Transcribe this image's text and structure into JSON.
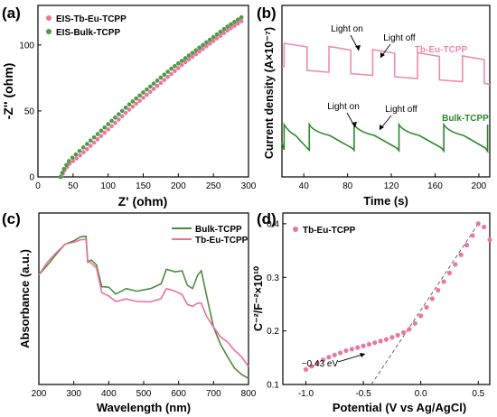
{
  "chart_data": [
    {
      "panel": "(a)",
      "type": "scatter",
      "xlabel": "Z' (ohm)",
      "ylabel": "-Z'' (ohm)",
      "xlim": [
        0,
        300
      ],
      "ylim": [
        0,
        130
      ],
      "xticks": [
        0,
        50,
        100,
        150,
        200,
        250,
        300
      ],
      "yticks": [
        0,
        50,
        100
      ],
      "legend_position": "top-left",
      "colors": [
        "#e8799c",
        "#4e9a48"
      ],
      "series": [
        {
          "name": "EIS-Tb-Eu-TCPP",
          "x": [
            33,
            38,
            45,
            55,
            70,
            90,
            110,
            130,
            150,
            170,
            190,
            210,
            230,
            250,
            270,
            290
          ],
          "y": [
            0,
            5,
            10,
            14,
            21,
            31,
            41,
            51,
            60,
            69,
            78,
            87,
            95,
            103,
            111,
            118
          ]
        },
        {
          "name": "EIS-Bulk-TCPP",
          "x": [
            32,
            37,
            44,
            54,
            70,
            90,
            110,
            130,
            150,
            170,
            190,
            210,
            230,
            250,
            270,
            290
          ],
          "y": [
            0,
            6,
            12,
            17,
            25,
            35,
            45,
            55,
            64,
            73,
            82,
            90,
            98,
            106,
            114,
            121
          ]
        }
      ]
    },
    {
      "panel": "(b)",
      "type": "line",
      "xlabel": "Time (s)",
      "ylabel": "Current density (A×10⁻⁷)",
      "xlim": [
        20,
        210
      ],
      "xticks": [
        40,
        80,
        120,
        160,
        200
      ],
      "colors": [
        "#f08aa8",
        "#2a8a2a"
      ],
      "series": [
        {
          "name": "Tb-Eu-TCPP",
          "on_times": [
            22,
            63,
            103,
            144,
            185
          ],
          "off_times": [
            43,
            83,
            123,
            164,
            205
          ]
        },
        {
          "name": "Bulk-TCPP",
          "on_times": [
            22,
            45,
            86,
            127,
            168,
            208
          ],
          "off_times": [
            105,
            146,
            187
          ]
        }
      ],
      "annotations": [
        "Light on",
        "Light off",
        "Light on",
        "Light off"
      ]
    },
    {
      "panel": "(c)",
      "type": "line",
      "xlabel": "Wavelength (nm)",
      "ylabel": "Absorbance (a.u.)",
      "xlim": [
        200,
        800
      ],
      "xticks": [
        200,
        300,
        400,
        500,
        600,
        700,
        800
      ],
      "legend_position": "top-right",
      "colors": [
        "#4e8a3e",
        "#ee6f9a"
      ],
      "series": [
        {
          "name": "Bulk-TCPP",
          "x": [
            200,
            225,
            250,
            275,
            300,
            320,
            335,
            340,
            350,
            365,
            380,
            400,
            420,
            450,
            480,
            520,
            550,
            565,
            590,
            610,
            625,
            640,
            655,
            665,
            680,
            700,
            720,
            740,
            760,
            780,
            800
          ],
          "y": [
            0.72,
            0.78,
            0.86,
            0.92,
            0.95,
            0.97,
            0.98,
            0.8,
            0.82,
            0.78,
            0.64,
            0.63,
            0.59,
            0.62,
            0.61,
            0.62,
            0.66,
            0.75,
            0.74,
            0.74,
            0.65,
            0.62,
            0.72,
            0.74,
            0.58,
            0.36,
            0.25,
            0.16,
            0.09,
            0.04,
            0.02
          ]
        },
        {
          "name": "Tb-Eu-TCPP",
          "x": [
            200,
            225,
            250,
            275,
            300,
            320,
            335,
            340,
            350,
            365,
            380,
            400,
            420,
            450,
            480,
            520,
            550,
            565,
            590,
            610,
            625,
            640,
            655,
            665,
            680,
            700,
            720,
            740,
            760,
            780,
            800
          ],
          "y": [
            0.72,
            0.8,
            0.87,
            0.92,
            0.94,
            0.95,
            0.96,
            0.8,
            0.8,
            0.76,
            0.6,
            0.57,
            0.54,
            0.55,
            0.54,
            0.53,
            0.56,
            0.62,
            0.61,
            0.58,
            0.52,
            0.5,
            0.53,
            0.52,
            0.44,
            0.36,
            0.3,
            0.26,
            0.21,
            0.16,
            0.1
          ]
        }
      ]
    },
    {
      "panel": "(d)",
      "type": "scatter",
      "xlabel": "Potential (V vs Ag/AgCl)",
      "ylabel": "C⁻²/F⁻²×10¹⁰",
      "xlim": [
        -1.2,
        0.6
      ],
      "ylim": [
        0.1,
        0.42
      ],
      "xticks": [
        -1.0,
        -0.5,
        0.0,
        0.5
      ],
      "yticks": [
        0.1,
        0.2,
        0.3,
        0.4
      ],
      "legend_position": "top-left",
      "colors": [
        "#e8799c"
      ],
      "series": [
        {
          "name": "Tb-Eu-TCPP",
          "x": [
            -1.0,
            -0.95,
            -0.9,
            -0.85,
            -0.8,
            -0.75,
            -0.7,
            -0.65,
            -0.6,
            -0.55,
            -0.5,
            -0.45,
            -0.4,
            -0.35,
            -0.3,
            -0.25,
            -0.2,
            -0.15,
            -0.1,
            -0.05,
            0.0,
            0.05,
            0.1,
            0.15,
            0.2,
            0.25,
            0.3,
            0.35,
            0.4,
            0.45,
            0.5,
            0.55,
            0.6
          ],
          "y": [
            0.128,
            0.134,
            0.14,
            0.146,
            0.151,
            0.155,
            0.159,
            0.163,
            0.166,
            0.169,
            0.172,
            0.175,
            0.178,
            0.181,
            0.184,
            0.188,
            0.192,
            0.197,
            0.203,
            0.214,
            0.228,
            0.244,
            0.26,
            0.276,
            0.292,
            0.308,
            0.324,
            0.342,
            0.36,
            0.378,
            0.4,
            0.394,
            0.37
          ]
        }
      ],
      "annotation": "−0.43 eV",
      "fit_line": {
        "x": [
          -0.43,
          0.5
        ],
        "y": [
          0.1,
          0.4
        ]
      }
    }
  ]
}
